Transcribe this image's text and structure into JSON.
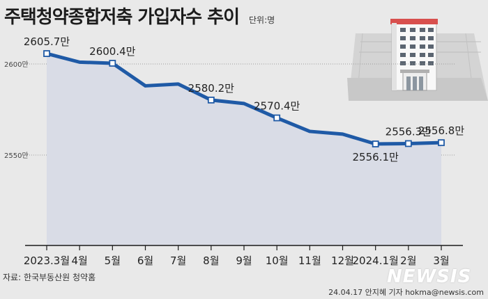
{
  "header": {
    "title": "주택청약종합저축 가입자수 추이",
    "unit": "단위:명"
  },
  "footer": {
    "source": "자료: 한국부동산원 청약홈",
    "credit": "24.04.17 안지혜 기자 hokma@newsis.com",
    "watermark": "NEWSIS"
  },
  "colors": {
    "line": "#1f5aa6",
    "area": "#d9dce6",
    "background": "#e9e9e9"
  },
  "illustration": "apartment-building-icon",
  "chart_data": {
    "type": "area",
    "title": "주택청약종합저축 가입자수 추이",
    "ylabel": "",
    "xlabel": "",
    "grid": "dotted horizontal at 2600만 and 2550만",
    "ylim": [
      2500,
      2625
    ],
    "yticks": [
      {
        "value": 2600,
        "label": "2600만"
      },
      {
        "value": 2550,
        "label": "2550만"
      }
    ],
    "categories": [
      "2023.3월",
      "4월",
      "5월",
      "6월",
      "7월",
      "8월",
      "9월",
      "10월",
      "11월",
      "12월",
      "2024.1월",
      "2월",
      "3월"
    ],
    "series": [
      {
        "values": [
          2605.7,
          2601.0,
          2600.4,
          2588.0,
          2589.0,
          2580.2,
          2578.3,
          2570.4,
          2563.0,
          2561.5,
          2556.1,
          2556.3,
          2556.8
        ],
        "labels": [
          "2605.7만",
          "",
          "2600.4만",
          "",
          "",
          "2580.2만",
          "",
          "2570.4만",
          "",
          "",
          "2556.1만",
          "2556.3만",
          "2556.8만"
        ]
      }
    ]
  }
}
